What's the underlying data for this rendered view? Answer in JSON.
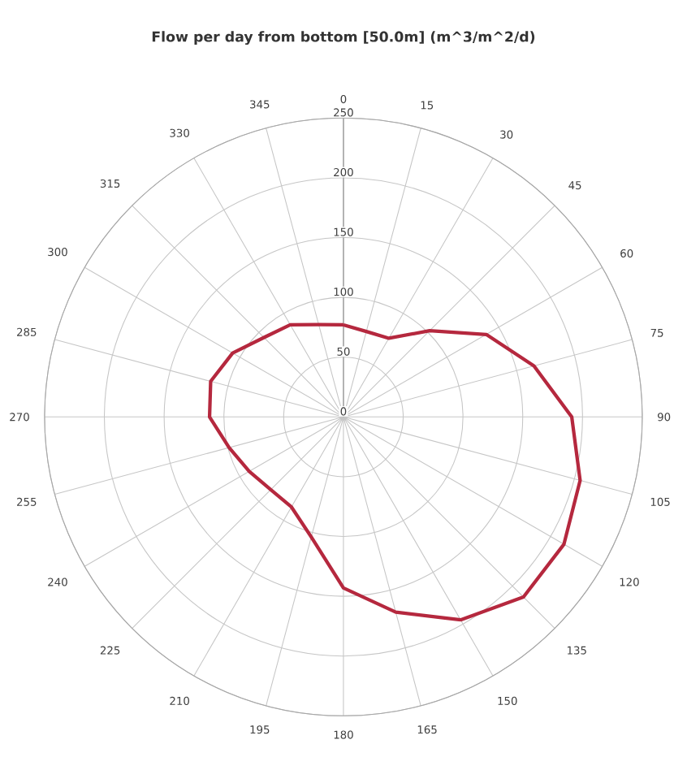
{
  "chart_data": {
    "type": "radar",
    "title": "Flow per day from bottom [50.0m] (m^3/m^2/d)",
    "categories": [
      "0",
      "15",
      "30",
      "45",
      "60",
      "75",
      "90",
      "105",
      "120",
      "135",
      "150",
      "165",
      "180",
      "195",
      "210",
      "225",
      "240",
      "255",
      "270",
      "285",
      "300",
      "315",
      "330",
      "345"
    ],
    "series": [
      {
        "color": "#b5283e",
        "values": [
          77,
          74,
          76,
          102,
          138,
          165,
          191,
          205,
          213,
          213,
          196,
          169,
          143,
          104,
          87,
          86,
          91,
          99,
          112,
          115,
          107,
          94,
          89,
          80
        ]
      }
    ],
    "ylim": [
      0,
      250
    ],
    "yticks": [
      0,
      50,
      100,
      150,
      200,
      250
    ],
    "grid": true,
    "marker": "none"
  }
}
